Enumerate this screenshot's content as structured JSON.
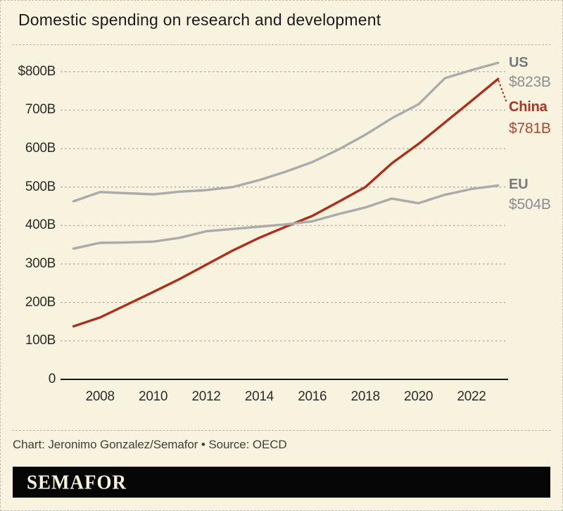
{
  "title": "Domestic spending on research and development",
  "credit": "Chart: Jeronimo Gonzalez/Semafor • Source: OECD",
  "logo": "SEMAFOR",
  "colors": {
    "background": "#F7F3DE",
    "border_dash": "#BFBFB4",
    "title_text": "#1B1B1B",
    "axis_text": "#2B2B28",
    "grid": "#AFAFA5",
    "axis_line": "#141414",
    "us_eu_line": "#ABABAB",
    "china_line": "#AE2E1C",
    "gray_label_name": "#787A7D",
    "gray_label_value": "#8C8E92",
    "red_label_name": "#A63524",
    "red_label_value": "#B04634",
    "logo_bg": "#060606",
    "logo_text": "#F7F3DE",
    "credit_text": "#3F3F38"
  },
  "chart_data": {
    "type": "line",
    "title": "Domestic spending on research and development",
    "unit": "USD billions",
    "grid": "dotted horizontal gridlines",
    "legend_position": "right end labels",
    "xlim": [
      2007,
      2023
    ],
    "ylim": [
      0,
      856
    ],
    "x": [
      2007,
      2008,
      2009,
      2010,
      2011,
      2012,
      2013,
      2014,
      2015,
      2016,
      2017,
      2018,
      2019,
      2020,
      2021,
      2022,
      2023
    ],
    "x_ticks": [
      2008,
      2010,
      2012,
      2014,
      2016,
      2018,
      2020,
      2022
    ],
    "y_ticks": [
      {
        "label": "$800B",
        "value": 800
      },
      {
        "label": "700B",
        "value": 700
      },
      {
        "label": "600B",
        "value": 600
      },
      {
        "label": "500B",
        "value": 500
      },
      {
        "label": "400B",
        "value": 400
      },
      {
        "label": "300B",
        "value": 300
      },
      {
        "label": "200B",
        "value": 200
      },
      {
        "label": "100B",
        "value": 100
      },
      {
        "label": "0",
        "value": 0
      }
    ],
    "series": [
      {
        "name": "US",
        "color_key": "us_eu_line",
        "values": [
          463,
          487,
          484,
          481,
          488,
          492,
          500,
          518,
          540,
          565,
          598,
          636,
          679,
          715,
          783,
          804,
          823
        ],
        "end_label": {
          "name": "US",
          "value": "$823B"
        }
      },
      {
        "name": "China",
        "color_key": "china_line",
        "values": [
          138,
          161,
          194,
          227,
          261,
          298,
          335,
          368,
          397,
          425,
          462,
          500,
          562,
          612,
          668,
          724,
          781
        ],
        "end_label": {
          "name": "China",
          "value": "$781B"
        },
        "leader_line": "dotted from line end down to label"
      },
      {
        "name": "EU",
        "color_key": "us_eu_line",
        "values": [
          340,
          355,
          356,
          358,
          368,
          385,
          391,
          397,
          403,
          411,
          430,
          447,
          470,
          458,
          480,
          495,
          504
        ],
        "end_label": {
          "name": "EU",
          "value": "$504B"
        }
      }
    ]
  }
}
